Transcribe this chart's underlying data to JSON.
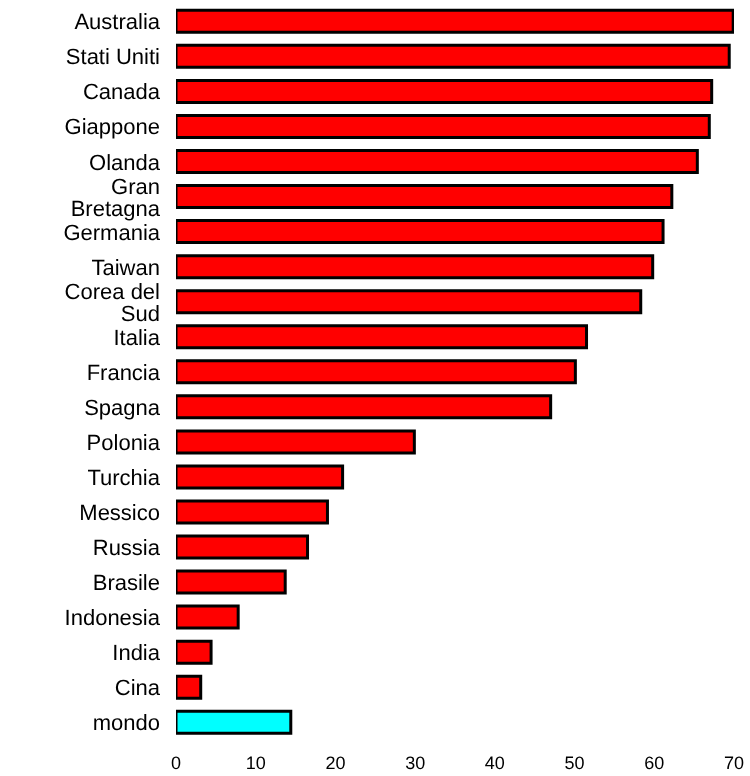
{
  "chart_data": {
    "type": "bar",
    "orientation": "horizontal",
    "categories": [
      "Australia",
      "Stati Uniti",
      "Canada",
      "Giappone",
      "Olanda",
      "Gran Bretagna",
      "Germania",
      "Taiwan",
      "Corea del Sud",
      "Italia",
      "Francia",
      "Spagna",
      "Polonia",
      "Turchia",
      "Messico",
      "Russia",
      "Brasile",
      "Indonesia",
      "India",
      "Cina",
      "mondo"
    ],
    "values": [
      69.9,
      69.4,
      67.2,
      66.9,
      65.4,
      62.2,
      61.1,
      59.8,
      58.3,
      51.5,
      50.1,
      47.0,
      29.9,
      20.9,
      19.0,
      16.5,
      13.7,
      7.8,
      4.4,
      3.1,
      14.4
    ],
    "colors": [
      "#ff0000",
      "#ff0000",
      "#ff0000",
      "#ff0000",
      "#ff0000",
      "#ff0000",
      "#ff0000",
      "#ff0000",
      "#ff0000",
      "#ff0000",
      "#ff0000",
      "#ff0000",
      "#ff0000",
      "#ff0000",
      "#ff0000",
      "#ff0000",
      "#ff0000",
      "#ff0000",
      "#ff0000",
      "#ff0000",
      "#00ffff"
    ],
    "xlim": [
      0,
      70
    ],
    "xticks": [
      0,
      10,
      20,
      30,
      40,
      50,
      60,
      70
    ],
    "grid": false,
    "legend": false
  }
}
